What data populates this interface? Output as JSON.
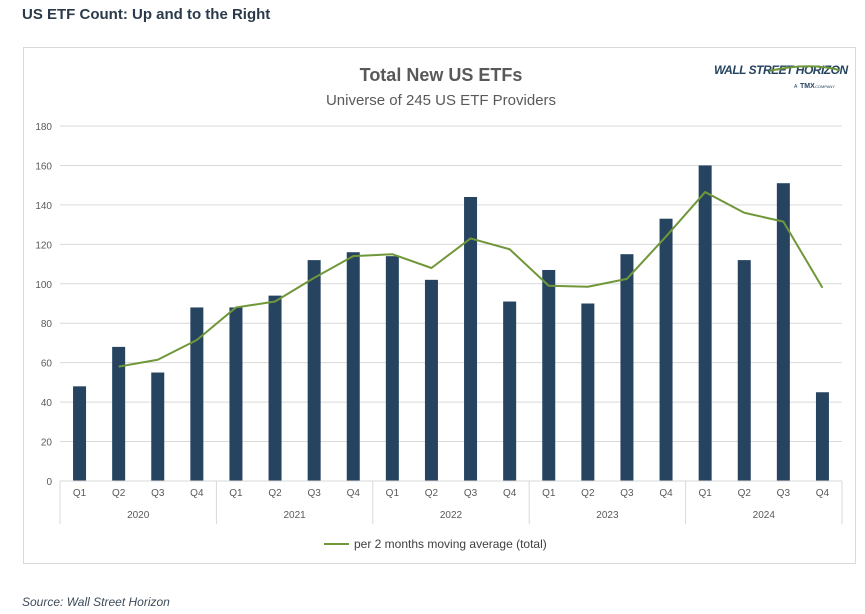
{
  "header": {
    "title": "US ETF Count: Up and to the Right"
  },
  "footer": {
    "source": "Source: Wall Street Horizon"
  },
  "logo": {
    "brand": "WALL STREET HORIZON",
    "sub_prefix": "A",
    "sub_brand": "TMX",
    "sub_suffix": "COMPANY"
  },
  "colors": {
    "bar": "#264460",
    "line": "#70973a",
    "grid": "#d9d9d9",
    "text": "#595959"
  },
  "chart_data": {
    "type": "bar",
    "title": "Total New US ETFs",
    "subtitle": "Universe of 245 US ETF Providers",
    "ylim": [
      0,
      180
    ],
    "yticks": [
      0,
      20,
      40,
      60,
      80,
      100,
      120,
      140,
      160,
      180
    ],
    "grid": true,
    "legend_position": "bottom",
    "years": [
      "2020",
      "2021",
      "2022",
      "2023",
      "2024"
    ],
    "categories": [
      "Q1",
      "Q2",
      "Q3",
      "Q4",
      "Q1",
      "Q2",
      "Q3",
      "Q4",
      "Q1",
      "Q2",
      "Q3",
      "Q4",
      "Q1",
      "Q2",
      "Q3",
      "Q4",
      "Q1",
      "Q2",
      "Q3",
      "Q4"
    ],
    "series": [
      {
        "values": [
          48,
          68,
          55,
          88,
          88,
          94,
          112,
          116,
          114,
          102,
          144,
          91,
          107,
          90,
          115,
          133,
          160,
          112,
          151,
          45
        ]
      },
      {
        "name": "per 2 months moving average (total)",
        "type": "line",
        "values": [
          null,
          58,
          61.5,
          71.5,
          88,
          91,
          103,
          114,
          115,
          108,
          123,
          117.5,
          99,
          98.5,
          102.5,
          124,
          146.5,
          136,
          131.5,
          98
        ]
      }
    ]
  }
}
